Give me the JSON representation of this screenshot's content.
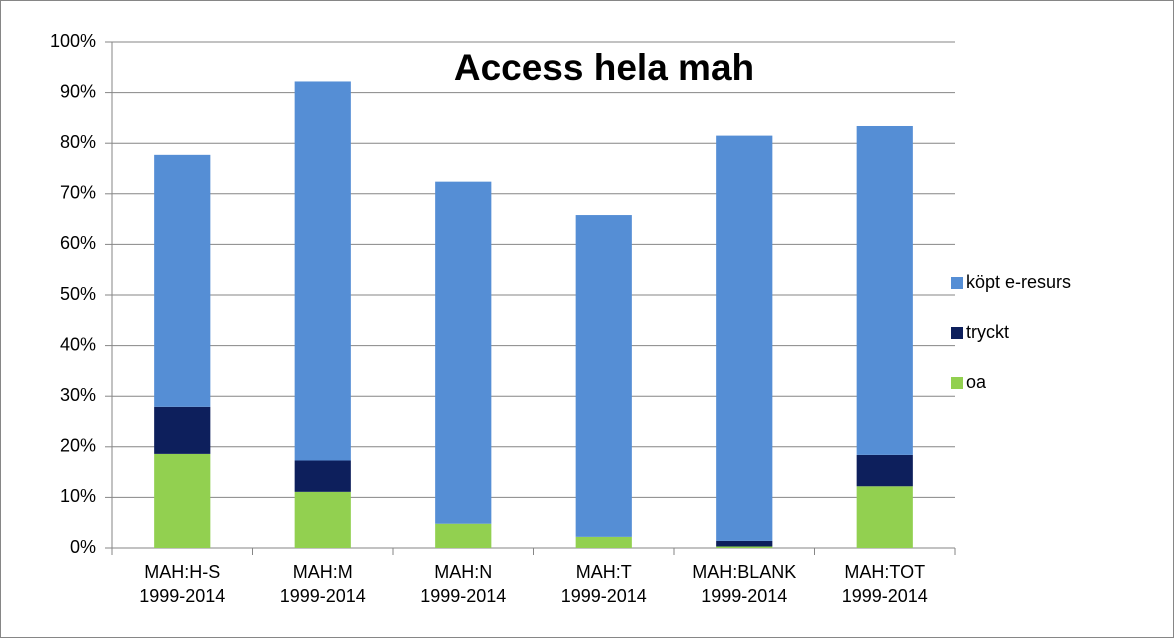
{
  "chart_data": {
    "type": "stacked_bar",
    "title": "Access hela mah",
    "categories": [
      "MAH:H-S\n1999-2014",
      "MAH:M\n1999-2014",
      "MAH:N\n1999-2014",
      "MAH:T\n1999-2014",
      "MAH:BLANK\n1999-2014",
      "MAH:TOT\n1999-2014"
    ],
    "series": [
      {
        "name": "oa",
        "color": "#92d050",
        "values": [
          18.6,
          11.1,
          4.8,
          2.2,
          0.3,
          12.2
        ]
      },
      {
        "name": "tryckt",
        "color": "#0d1f5c",
        "values": [
          9.3,
          6.2,
          0,
          0,
          1.1,
          6.2
        ]
      },
      {
        "name": "köpt e-resurs",
        "color": "#558ed5",
        "values": [
          49.8,
          74.9,
          67.6,
          63.6,
          80.1,
          65.0
        ]
      }
    ],
    "ylim": [
      0,
      100
    ],
    "yticks": [
      {
        "value": 0,
        "label": "0%"
      },
      {
        "value": 10,
        "label": "10%"
      },
      {
        "value": 20,
        "label": "20%"
      },
      {
        "value": 30,
        "label": "30%"
      },
      {
        "value": 40,
        "label": "40%"
      },
      {
        "value": 50,
        "label": "50%"
      },
      {
        "value": 60,
        "label": "60%"
      },
      {
        "value": 70,
        "label": "70%"
      },
      {
        "value": 80,
        "label": "80%"
      },
      {
        "value": 90,
        "label": "90%"
      },
      {
        "value": 100,
        "label": "100%"
      }
    ],
    "grid": true,
    "legend": "right"
  }
}
